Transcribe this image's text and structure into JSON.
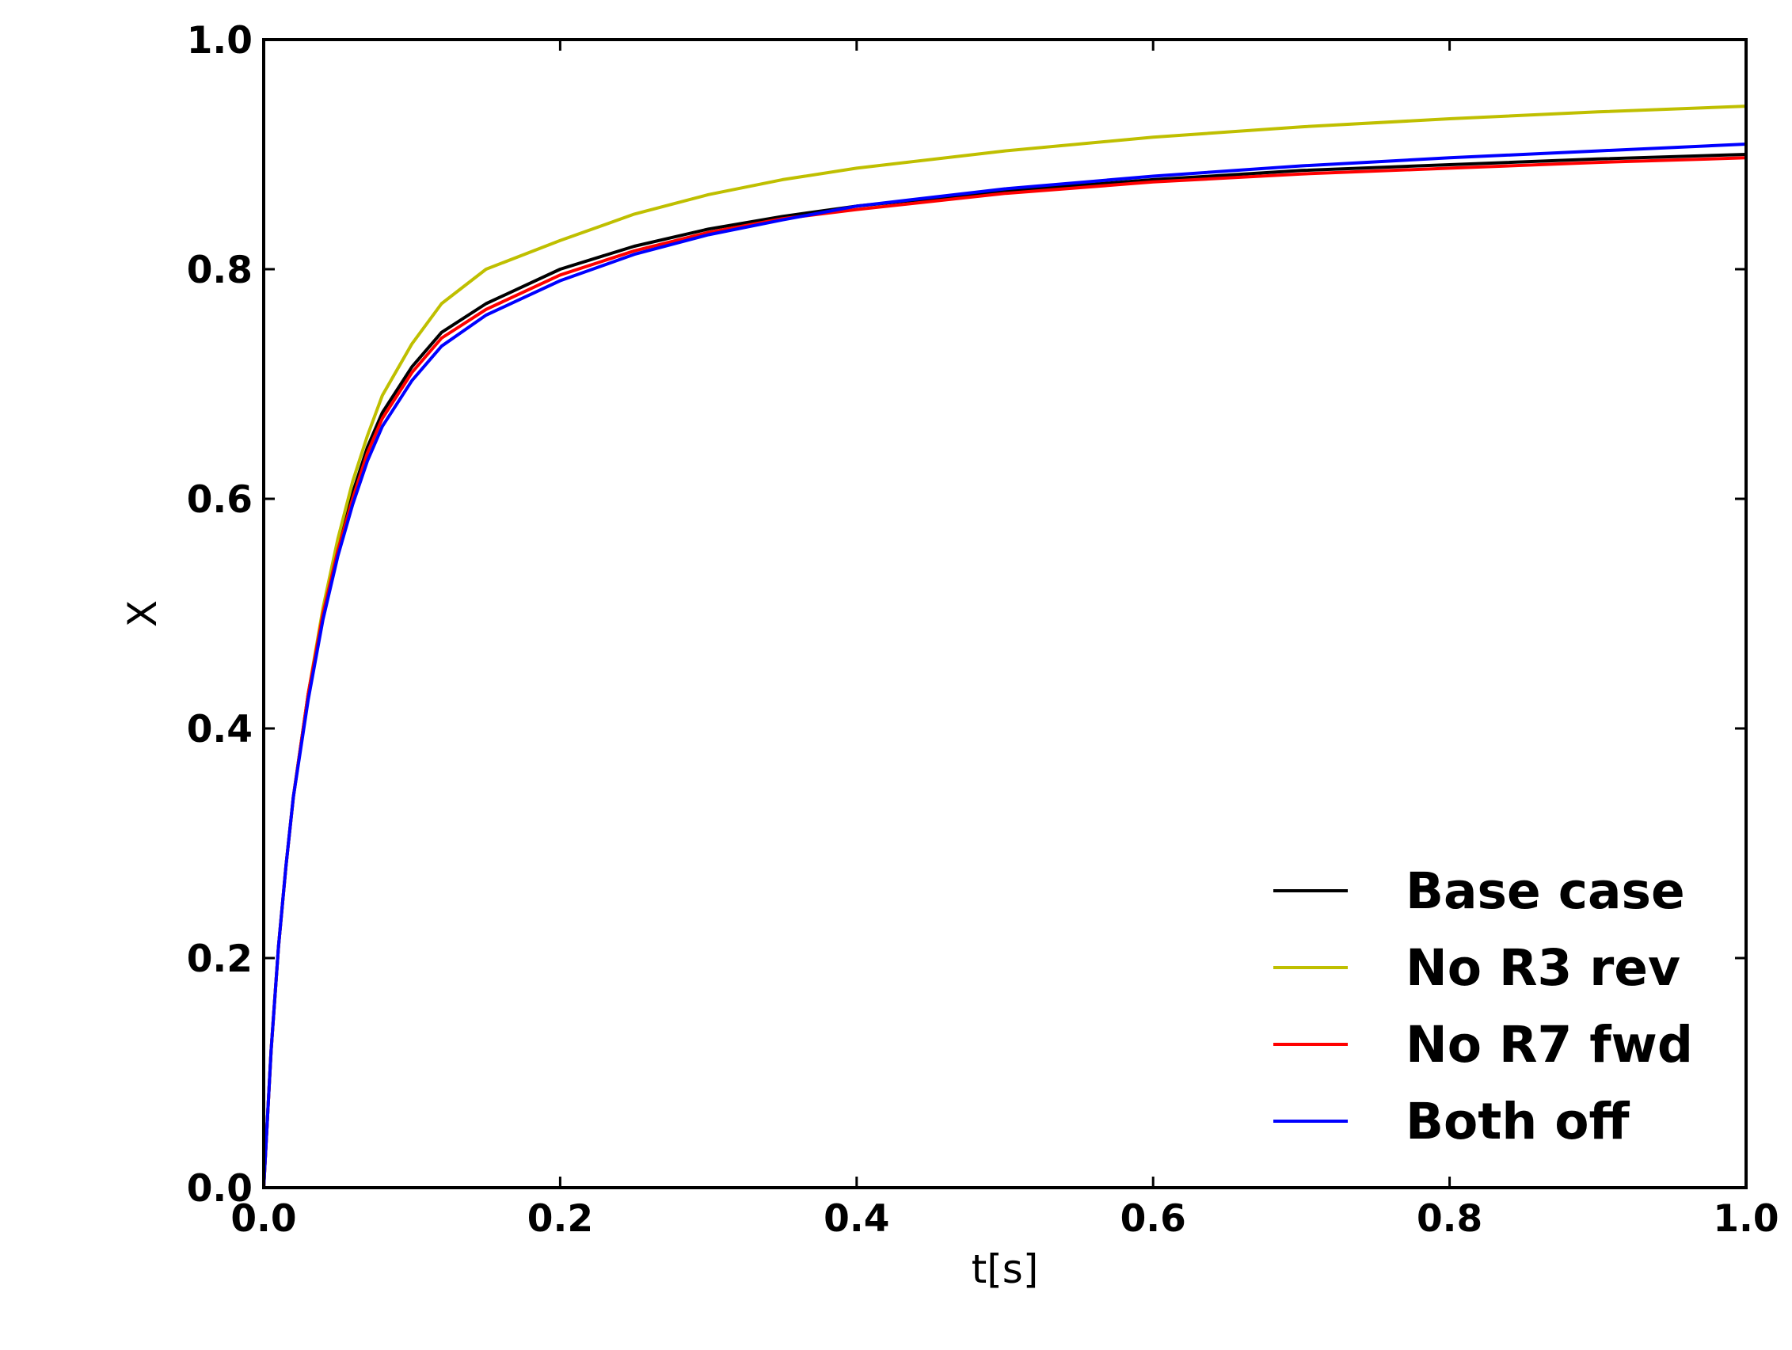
{
  "chart_data": {
    "type": "line",
    "title": "",
    "xlabel": "t[s]",
    "ylabel": "X",
    "xlim": [
      0.0,
      1.0
    ],
    "ylim": [
      0.0,
      1.0
    ],
    "xticks": [
      "0.0",
      "0.2",
      "0.4",
      "0.6",
      "0.8",
      "1.0"
    ],
    "yticks": [
      "0.0",
      "0.2",
      "0.4",
      "0.6",
      "0.8",
      "1.0"
    ],
    "grid": false,
    "legend_position": "bottom-right",
    "x": [
      0.0,
      0.005,
      0.01,
      0.015,
      0.02,
      0.03,
      0.04,
      0.05,
      0.06,
      0.07,
      0.08,
      0.1,
      0.12,
      0.15,
      0.2,
      0.25,
      0.3,
      0.35,
      0.4,
      0.5,
      0.6,
      0.7,
      0.8,
      0.9,
      1.0
    ],
    "series": [
      {
        "name": "Base case",
        "color": "#000000",
        "values": [
          0.0,
          0.12,
          0.21,
          0.28,
          0.34,
          0.43,
          0.5,
          0.56,
          0.605,
          0.645,
          0.675,
          0.715,
          0.745,
          0.77,
          0.8,
          0.82,
          0.835,
          0.846,
          0.855,
          0.868,
          0.878,
          0.886,
          0.891,
          0.896,
          0.9
        ]
      },
      {
        "name": "No R3 rev",
        "color": "#bfbf00",
        "values": [
          0.0,
          0.12,
          0.21,
          0.28,
          0.34,
          0.43,
          0.505,
          0.565,
          0.615,
          0.655,
          0.69,
          0.735,
          0.77,
          0.8,
          0.825,
          0.848,
          0.865,
          0.878,
          0.888,
          0.903,
          0.915,
          0.924,
          0.931,
          0.937,
          0.942
        ]
      },
      {
        "name": "No R7 fwd",
        "color": "#ff0000",
        "values": [
          0.0,
          0.12,
          0.21,
          0.28,
          0.34,
          0.43,
          0.5,
          0.555,
          0.6,
          0.64,
          0.67,
          0.71,
          0.74,
          0.765,
          0.795,
          0.816,
          0.832,
          0.844,
          0.852,
          0.866,
          0.876,
          0.883,
          0.888,
          0.893,
          0.897
        ]
      },
      {
        "name": "Both off",
        "color": "#0000ff",
        "values": [
          0.0,
          0.12,
          0.21,
          0.28,
          0.34,
          0.425,
          0.495,
          0.55,
          0.595,
          0.633,
          0.663,
          0.703,
          0.733,
          0.76,
          0.79,
          0.813,
          0.83,
          0.843,
          0.855,
          0.87,
          0.881,
          0.89,
          0.897,
          0.903,
          0.909
        ]
      }
    ]
  }
}
